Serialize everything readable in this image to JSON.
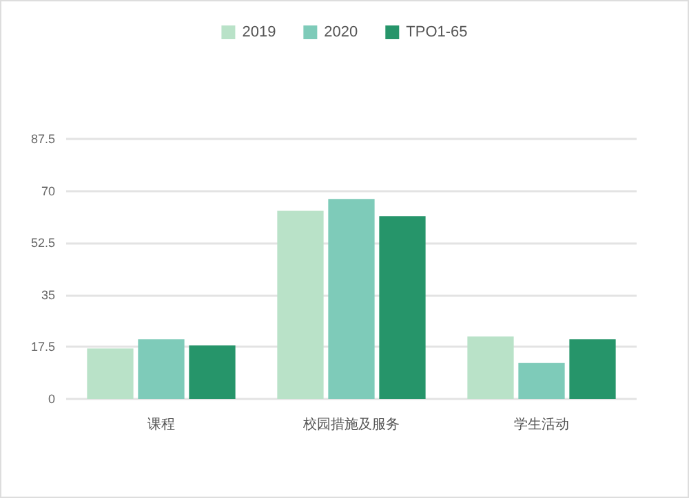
{
  "chart_data": {
    "type": "bar",
    "categories": [
      "课程",
      "校园措施及服务",
      "学生活动"
    ],
    "series": [
      {
        "name": "2019",
        "color": "#b9e2c8",
        "values": [
          17.0,
          63.3,
          21.0
        ]
      },
      {
        "name": "2020",
        "color": "#7ecbb9",
        "values": [
          20.1,
          67.3,
          12.1
        ]
      },
      {
        "name": "TPO1-65",
        "color": "#26956a",
        "values": [
          18.0,
          61.5,
          20.1
        ]
      }
    ],
    "ylim": [
      0,
      87.5
    ],
    "yticks": [
      0,
      17.5,
      35,
      52.5,
      70,
      87.5
    ],
    "grid": "y",
    "legend": "top"
  }
}
